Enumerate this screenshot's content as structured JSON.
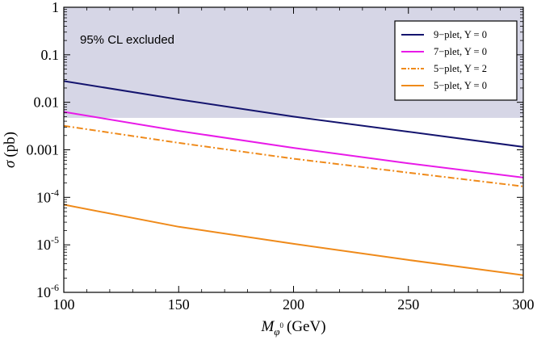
{
  "chart_data": {
    "type": "line",
    "title": "",
    "xlabel": {
      "main": "M",
      "sub": "φ",
      "sup": "0",
      "unit": "(GeV)"
    },
    "ylabel": {
      "symbol": "σ",
      "unit": "(pb)"
    },
    "xlim": [
      100,
      300
    ],
    "ylim": [
      1e-06,
      1
    ],
    "yscale": "log",
    "x_ticks": [
      100,
      150,
      200,
      250,
      300
    ],
    "y_ticks": [
      {
        "value": 1,
        "label": "1",
        "exp": ""
      },
      {
        "value": 0.1,
        "label": "0.1",
        "exp": ""
      },
      {
        "value": 0.01,
        "label": "0.01",
        "exp": ""
      },
      {
        "value": 0.001,
        "label": "0.001",
        "exp": ""
      },
      {
        "value": 0.0001,
        "label": "10",
        "exp": "-4"
      },
      {
        "value": 1e-05,
        "label": "10",
        "exp": "-5"
      },
      {
        "value": 1e-06,
        "label": "10",
        "exp": "-6"
      }
    ],
    "grid": false,
    "legend_position": "top-right",
    "excluded_region": {
      "label": "95% CL excluded",
      "y_from": 0.0047,
      "y_to": 1,
      "color": "#d6d6e6"
    },
    "series": [
      {
        "name": "9−plet, Y = 0",
        "color": "#14146e",
        "dash": "solid",
        "x": [
          100,
          150,
          200,
          250,
          300
        ],
        "y": [
          0.028,
          0.0115,
          0.005,
          0.0024,
          0.00115
        ]
      },
      {
        "name": "7−plet, Y = 0",
        "color": "#e81ae8",
        "dash": "solid",
        "x": [
          100,
          150,
          200,
          250,
          300
        ],
        "y": [
          0.0063,
          0.0025,
          0.0011,
          0.00052,
          0.00026
        ]
      },
      {
        "name": "5−plet, Y = 2",
        "color": "#ef8a1a",
        "dash": "dashdot",
        "x": [
          100,
          150,
          200,
          250,
          300
        ],
        "y": [
          0.0032,
          0.0014,
          0.00065,
          0.00033,
          0.00017
        ]
      },
      {
        "name": "5−plet, Y = 0",
        "color": "#ef8a1a",
        "dash": "solid",
        "x": [
          100,
          150,
          200,
          250,
          300
        ],
        "y": [
          7e-05,
          2.4e-05,
          1.05e-05,
          4.8e-06,
          2.3e-06
        ]
      }
    ]
  }
}
